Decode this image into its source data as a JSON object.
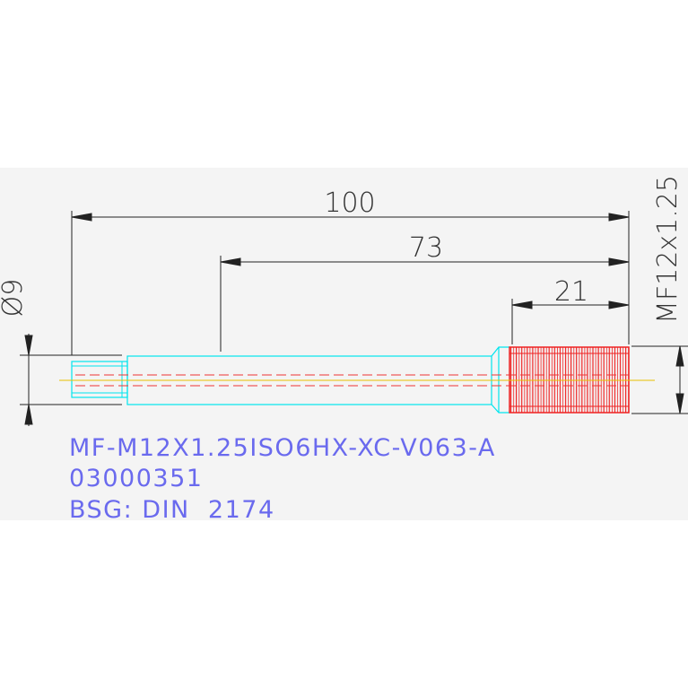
{
  "dimensions": {
    "overall_length": "100",
    "shank_length": "73",
    "thread_length": "21",
    "diameter": "Ø9",
    "thread_spec": "MF12x1.25"
  },
  "title_block": {
    "line1": "MF-M12X1.25ISO6HX-XC-V063-A",
    "line2": "03000351",
    "line3": "BSG: DIN  2174"
  },
  "colors": {
    "part_outline": "#00e5ee",
    "thread": "#ee2222",
    "centerline": "#e8c000",
    "dimension": "#222222",
    "title": "#6a6aee",
    "background": "#f4f4f4"
  }
}
